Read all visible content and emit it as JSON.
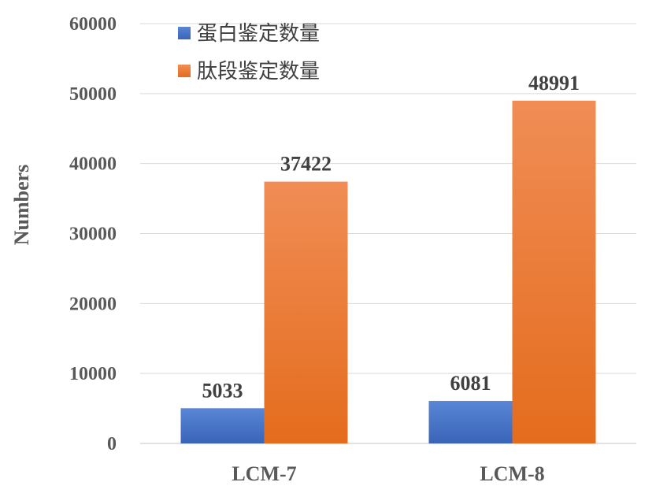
{
  "chart_data": {
    "type": "bar",
    "categories": [
      "LCM-7",
      "LCM-8"
    ],
    "series": [
      {
        "name": "蛋白鉴定数量",
        "values": [
          5033,
          6081
        ],
        "color": "#4472c4"
      },
      {
        "name": "肽段鉴定数量",
        "values": [
          37422,
          48991
        ],
        "color": "#ed7d31"
      }
    ],
    "ylabel": "Numbers",
    "xlabel": "",
    "ylim": [
      0,
      60000
    ],
    "yticks": [
      0,
      10000,
      20000,
      30000,
      40000,
      50000,
      60000
    ],
    "grid": true,
    "legend_position": "top-left",
    "data_labels": true
  }
}
